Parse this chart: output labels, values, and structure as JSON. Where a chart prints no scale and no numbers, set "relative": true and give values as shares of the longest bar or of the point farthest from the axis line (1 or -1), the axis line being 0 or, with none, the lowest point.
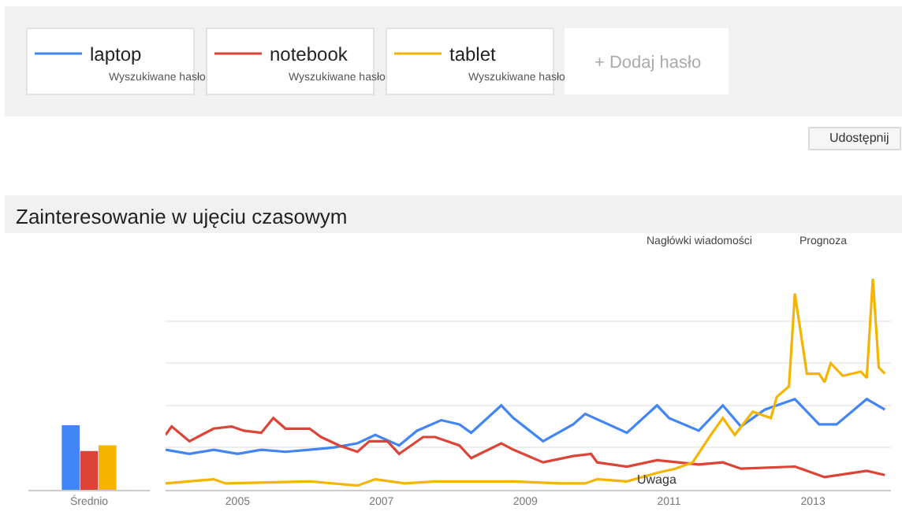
{
  "chart_data": [
    {
      "type": "bar",
      "categories": [
        "Średnio"
      ],
      "relative": true,
      "series": [
        {
          "color": "#4285f4",
          "values": [
            1
          ]
        },
        {
          "color": "#db4437",
          "values": [
            0.6
          ]
        },
        {
          "color": "#f4b400",
          "values": [
            0.69
          ]
        }
      ]
    },
    {
      "type": "line",
      "title": "Zainteresowanie w ujęciu czasowym",
      "relative": true,
      "grid": "y",
      "legend": "top left",
      "xlim": [
        "2004-01",
        "2014-02"
      ],
      "xticks": [
        {
          "value": "2005-01",
          "label": "2005"
        },
        {
          "value": "2007-01",
          "label": "2007"
        },
        {
          "value": "2009-01",
          "label": "2009"
        },
        {
          "value": "2011-01",
          "label": "2011"
        },
        {
          "value": "2013-01",
          "label": "2013"
        }
      ],
      "annotations": [
        "Wyszukiwane hasło",
        "Wyszukiwane hasło",
        "Wyszukiwane hasło",
        "+ Dodaj hasło",
        "Udostępnij",
        "Nagłówki wiadomości",
        "Prognoza",
        {
          "text": "Uwaga",
          "x": "2010-11",
          "y": 0.05
        }
      ],
      "series": [
        {
          "name": "laptop",
          "color": "#4285f4",
          "x": [
            "2004-01",
            "2004-05",
            "2004-09",
            "2005-01",
            "2005-05",
            "2005-09",
            "2006-01",
            "2006-05",
            "2006-09",
            "2006-12",
            "2007-04",
            "2007-07",
            "2007-11",
            "2008-02",
            "2008-04",
            "2008-09",
            "2008-11",
            "2009-04",
            "2009-09",
            "2009-11",
            "2010-06",
            "2010-11",
            "2011-01",
            "2011-06",
            "2011-10",
            "2012-01",
            "2012-05",
            "2012-10",
            "2013-02",
            "2013-05",
            "2013-10",
            "2014-01"
          ],
          "values": [
            0.19,
            0.17,
            0.19,
            0.17,
            0.19,
            0.18,
            0.19,
            0.2,
            0.22,
            0.26,
            0.21,
            0.28,
            0.33,
            0.31,
            0.27,
            0.4,
            0.34,
            0.23,
            0.31,
            0.36,
            0.27,
            0.4,
            0.34,
            0.28,
            0.4,
            0.3,
            0.38,
            0.43,
            0.31,
            0.31,
            0.43,
            0.38
          ]
        },
        {
          "name": "notebook",
          "color": "#db4437",
          "x": [
            "2004-01",
            "2004-02",
            "2004-05",
            "2004-09",
            "2004-12",
            "2005-02",
            "2005-05",
            "2005-07",
            "2005-09",
            "2006-01",
            "2006-03",
            "2006-06",
            "2006-09",
            "2006-11",
            "2007-02",
            "2007-04",
            "2007-08",
            "2007-10",
            "2008-02",
            "2008-04",
            "2008-09",
            "2008-11",
            "2009-04",
            "2009-09",
            "2009-12",
            "2010-01",
            "2010-06",
            "2010-11",
            "2011-06",
            "2011-10",
            "2012-01",
            "2012-10",
            "2013-03",
            "2013-10",
            "2014-01"
          ],
          "values": [
            0.26,
            0.3,
            0.23,
            0.29,
            0.3,
            0.28,
            0.27,
            0.34,
            0.29,
            0.29,
            0.25,
            0.21,
            0.18,
            0.23,
            0.23,
            0.17,
            0.25,
            0.25,
            0.21,
            0.15,
            0.22,
            0.19,
            0.13,
            0.16,
            0.17,
            0.13,
            0.11,
            0.14,
            0.12,
            0.13,
            0.1,
            0.11,
            0.06,
            0.09,
            0.07
          ]
        },
        {
          "name": "tablet",
          "color": "#f4b400",
          "x": [
            "2004-01",
            "2004-09",
            "2004-11",
            "2006-01",
            "2006-09",
            "2006-12",
            "2007-05",
            "2007-10",
            "2008-01",
            "2008-11",
            "2009-07",
            "2009-11",
            "2010-01",
            "2010-06",
            "2010-11",
            "2011-02",
            "2011-05",
            "2011-08",
            "2011-10",
            "2011-12",
            "2012-03",
            "2012-06",
            "2012-07",
            "2012-09",
            "2012-10",
            "2012-12",
            "2013-02",
            "2013-03",
            "2013-04",
            "2013-06",
            "2013-09",
            "2013-10",
            "2013-11",
            "2013-12",
            "2014-01"
          ],
          "values": [
            0.03,
            0.05,
            0.03,
            0.04,
            0.02,
            0.05,
            0.03,
            0.04,
            0.04,
            0.04,
            0.03,
            0.03,
            0.05,
            0.04,
            0.08,
            0.1,
            0.13,
            0.26,
            0.34,
            0.26,
            0.37,
            0.34,
            0.44,
            0.49,
            0.93,
            0.55,
            0.55,
            0.51,
            0.6,
            0.54,
            0.56,
            0.53,
            1.0,
            0.58,
            0.55
          ]
        }
      ]
    }
  ]
}
